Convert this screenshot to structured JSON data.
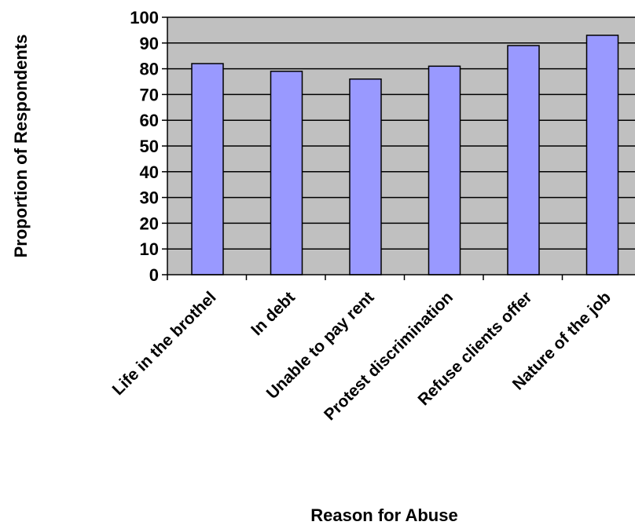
{
  "chart_data": {
    "type": "bar",
    "title": "",
    "xlabel": "Reason for Abuse",
    "ylabel": "Proportion of Respondents",
    "categories": [
      "Life in the brothel",
      "In debt",
      "Unable to pay rent",
      "Protest discrimination",
      "Refuse clients offer",
      "Nature of the job"
    ],
    "values": [
      82,
      79,
      76,
      81,
      89,
      93
    ],
    "ylim": [
      0,
      100
    ],
    "yticks": [
      0,
      10,
      20,
      30,
      40,
      50,
      60,
      70,
      80,
      90,
      100
    ],
    "grid": true,
    "legend": "none",
    "colors": {
      "plot_background": "#c0c0c0",
      "bar_fill": "#9999ff",
      "bar_stroke": "#000000",
      "gridline": "#000000"
    }
  }
}
